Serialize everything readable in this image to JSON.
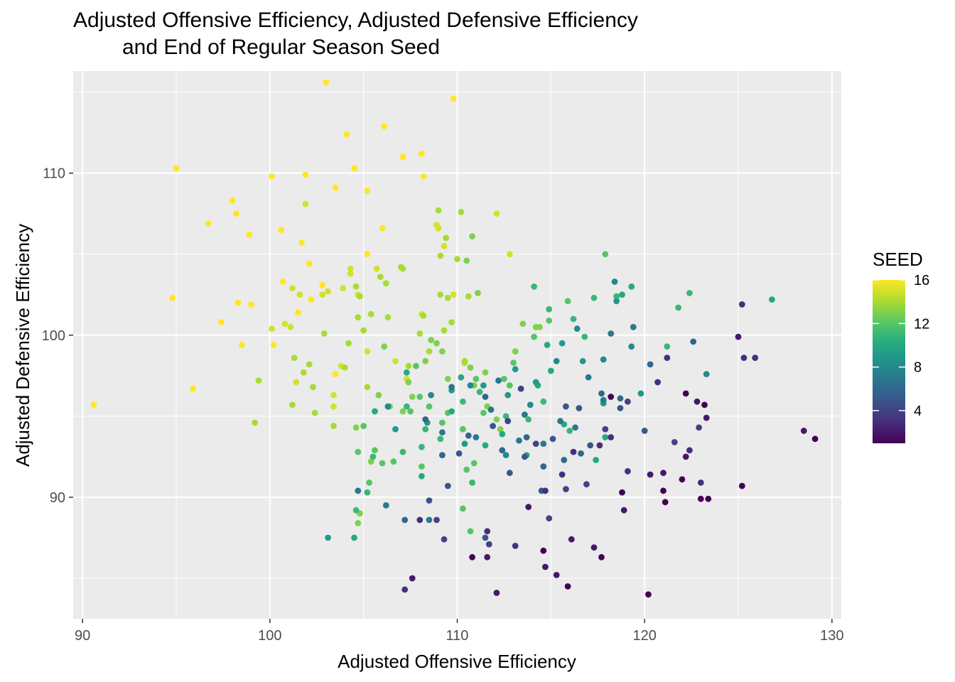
{
  "title_lines": [
    "Adjusted Offensive Efficiency, Adjusted Defensive Efficiency",
    "and End of Regular Season Seed"
  ],
  "chart_data": {
    "type": "scatter",
    "title": "Adjusted Offensive Efficiency, Adjusted Defensive Efficiency\nand End of Regular Season Seed",
    "xlabel": "Adjusted Offensive Efficiency",
    "ylabel": "Adjusted Defensive Efficiency",
    "xlim": [
      89.5,
      130.5
    ],
    "ylim": [
      82.5,
      116.3
    ],
    "x_ticks": [
      90,
      100,
      110,
      120,
      130
    ],
    "y_ticks": [
      90,
      100,
      110
    ],
    "grid": true,
    "panel_background": "#ebebeb",
    "color_legend": {
      "title": "SEED",
      "ticks": [
        4,
        8,
        12,
        16
      ],
      "range": [
        1,
        16
      ],
      "palette": "viridis",
      "placement": "right"
    },
    "points": [
      [
        90.6,
        95.7,
        16
      ],
      [
        94.8,
        102.3,
        16
      ],
      [
        95,
        110.3,
        16
      ],
      [
        95.9,
        96.7,
        16
      ],
      [
        96.7,
        106.9,
        16
      ],
      [
        97.4,
        100.8,
        16
      ],
      [
        98,
        108.3,
        16
      ],
      [
        98.2,
        107.5,
        16
      ],
      [
        98.3,
        102,
        16
      ],
      [
        98.5,
        99.4,
        16
      ],
      [
        98.9,
        106.2,
        16
      ],
      [
        99,
        101.9,
        16
      ],
      [
        100.1,
        109.8,
        16
      ],
      [
        100.2,
        99.4,
        16
      ],
      [
        100.6,
        106.5,
        16
      ],
      [
        100.7,
        103.3,
        16
      ],
      [
        101.5,
        101.4,
        16
      ],
      [
        101.7,
        105.7,
        16
      ],
      [
        101.9,
        109.9,
        16
      ],
      [
        102.1,
        104.4,
        16
      ],
      [
        102.2,
        102.2,
        16
      ],
      [
        102.8,
        103.1,
        16
      ],
      [
        103,
        115.6,
        16
      ],
      [
        103.5,
        109.1,
        16
      ],
      [
        103.5,
        97.6,
        16
      ],
      [
        104.1,
        112.4,
        16
      ],
      [
        104.5,
        110.3,
        16
      ],
      [
        105.2,
        108.9,
        16
      ],
      [
        105.2,
        105,
        16
      ],
      [
        106,
        106.6,
        16
      ],
      [
        106.1,
        112.9,
        16
      ],
      [
        107.1,
        111,
        16
      ],
      [
        108.1,
        111.2,
        16
      ],
      [
        108.2,
        109.8,
        16
      ],
      [
        109.8,
        114.6,
        16
      ],
      [
        100.1,
        100.4,
        15
      ],
      [
        101.2,
        102.9,
        15
      ],
      [
        101.9,
        108.1,
        15
      ],
      [
        101.6,
        102.5,
        15
      ],
      [
        102.8,
        102.5,
        15
      ],
      [
        103.1,
        102.7,
        15
      ],
      [
        103.4,
        96.3,
        15
      ],
      [
        103.8,
        98.1,
        15
      ],
      [
        103.9,
        102.9,
        15
      ],
      [
        104.3,
        104.1,
        15
      ],
      [
        104.3,
        103.8,
        15
      ],
      [
        104.7,
        102.5,
        15
      ],
      [
        100.8,
        100.7,
        15
      ],
      [
        101.1,
        100.5,
        15
      ],
      [
        101.4,
        97.1,
        15
      ],
      [
        103.4,
        95.6,
        15
      ],
      [
        105.2,
        99,
        15
      ],
      [
        105.7,
        104.1,
        15
      ],
      [
        106.7,
        98.4,
        15
      ],
      [
        107.3,
        97.3,
        15
      ],
      [
        108.1,
        101.3,
        15
      ],
      [
        108.9,
        106.8,
        15
      ],
      [
        109,
        106.6,
        15
      ],
      [
        109.3,
        105.5,
        15
      ],
      [
        109.8,
        102.5,
        15
      ],
      [
        112.1,
        107.5,
        15
      ],
      [
        112.8,
        105,
        15
      ],
      [
        99.2,
        94.6,
        14
      ],
      [
        99.4,
        97.2,
        14
      ],
      [
        101.2,
        95.7,
        14
      ],
      [
        101.3,
        98.6,
        14
      ],
      [
        101.8,
        97.7,
        14
      ],
      [
        102.1,
        98.2,
        14
      ],
      [
        102.3,
        96.8,
        14
      ],
      [
        102.4,
        95.2,
        14
      ],
      [
        102.9,
        100.1,
        14
      ],
      [
        103.4,
        94.4,
        14
      ],
      [
        104,
        98,
        14
      ],
      [
        104.2,
        99.5,
        14
      ],
      [
        104.6,
        103,
        14
      ],
      [
        104.7,
        101.1,
        14
      ],
      [
        104.8,
        102.4,
        14
      ],
      [
        105,
        100.3,
        14
      ],
      [
        105.2,
        96.8,
        14
      ],
      [
        105.4,
        101.3,
        14
      ],
      [
        105.9,
        103.6,
        14
      ],
      [
        106.2,
        103.2,
        14
      ],
      [
        106.3,
        101.1,
        14
      ],
      [
        107,
        104.2,
        14
      ],
      [
        107.1,
        104.1,
        14
      ],
      [
        107.4,
        98.1,
        14
      ],
      [
        108,
        100.1,
        14
      ],
      [
        108.2,
        101.2,
        14
      ],
      [
        108.5,
        99,
        14
      ],
      [
        109,
        107.7,
        14
      ],
      [
        109.1,
        104.9,
        14
      ],
      [
        109.1,
        102.5,
        14
      ],
      [
        109.3,
        100.3,
        14
      ],
      [
        109.4,
        106,
        14
      ],
      [
        109.5,
        102.3,
        14
      ],
      [
        109.7,
        100.8,
        14
      ],
      [
        110,
        104.7,
        14
      ],
      [
        110.2,
        107.6,
        14
      ],
      [
        110.4,
        98.4,
        14
      ],
      [
        110.4,
        98.3,
        14
      ],
      [
        110.6,
        102.4,
        14
      ],
      [
        104.6,
        94.3,
        13
      ],
      [
        104.7,
        88.4,
        13
      ],
      [
        104.8,
        89,
        13
      ],
      [
        105.4,
        92.2,
        13
      ],
      [
        105.8,
        96.3,
        13
      ],
      [
        106.1,
        99.3,
        13
      ],
      [
        106.4,
        95.6,
        13
      ],
      [
        107.1,
        95.3,
        13
      ],
      [
        107.4,
        97.1,
        13
      ],
      [
        107.6,
        96.2,
        13
      ],
      [
        108.3,
        98.4,
        13
      ],
      [
        108.6,
        99.7,
        13
      ],
      [
        108.9,
        99.5,
        13
      ],
      [
        109.2,
        99,
        13
      ],
      [
        109.5,
        97.3,
        13
      ],
      [
        110.5,
        104.6,
        13
      ],
      [
        110.7,
        98,
        13
      ],
      [
        110.8,
        106.1,
        13
      ],
      [
        110.9,
        96.9,
        13
      ],
      [
        111.1,
        102.6,
        13
      ],
      [
        111.5,
        97.7,
        13
      ],
      [
        111.6,
        95.6,
        13
      ],
      [
        112.1,
        94.8,
        13
      ],
      [
        112.3,
        94.2,
        13
      ],
      [
        113.1,
        99,
        13
      ],
      [
        113.5,
        100.7,
        13
      ],
      [
        114.2,
        100.5,
        13
      ],
      [
        114.4,
        100.5,
        13
      ],
      [
        104.7,
        92.8,
        12
      ],
      [
        105,
        94.4,
        12
      ],
      [
        105.3,
        90.9,
        12
      ],
      [
        105.6,
        92.9,
        12
      ],
      [
        106,
        92.1,
        12
      ],
      [
        106.6,
        92.2,
        12
      ],
      [
        107.5,
        95.3,
        12
      ],
      [
        107.8,
        98.1,
        12
      ],
      [
        108,
        96.2,
        12
      ],
      [
        108.1,
        91.9,
        12
      ],
      [
        108.5,
        95.6,
        12
      ],
      [
        109.2,
        94.6,
        12
      ],
      [
        109.5,
        95.2,
        12
      ],
      [
        110.3,
        94.2,
        12
      ],
      [
        110.3,
        89.3,
        12
      ],
      [
        110.5,
        91.7,
        12
      ],
      [
        110.7,
        87.9,
        12
      ],
      [
        110.9,
        92.1,
        12
      ],
      [
        111,
        97.3,
        12
      ],
      [
        111.4,
        95.2,
        12
      ],
      [
        112.5,
        97.3,
        12
      ],
      [
        112.8,
        96.9,
        12
      ],
      [
        113,
        98.3,
        12
      ],
      [
        114.1,
        99.9,
        12
      ],
      [
        114.9,
        100.9,
        12
      ],
      [
        115.9,
        102.1,
        12
      ],
      [
        117.9,
        105,
        12
      ],
      [
        104.6,
        89.2,
        11
      ],
      [
        105.2,
        90.3,
        11
      ],
      [
        105.5,
        92.5,
        11
      ],
      [
        107.1,
        92.8,
        11
      ],
      [
        107.3,
        95.6,
        11
      ],
      [
        108.1,
        93.1,
        11
      ],
      [
        108.3,
        94.2,
        11
      ],
      [
        109.1,
        93.6,
        11
      ],
      [
        110.3,
        95.9,
        11
      ],
      [
        110.8,
        90.9,
        11
      ],
      [
        111.2,
        96.5,
        11
      ],
      [
        112.6,
        95,
        11
      ],
      [
        113.8,
        94.8,
        11
      ],
      [
        114.1,
        103,
        11
      ],
      [
        114.6,
        95.9,
        11
      ],
      [
        114.9,
        101.6,
        11
      ],
      [
        116,
        94.1,
        11
      ],
      [
        116.2,
        101,
        11
      ],
      [
        116.8,
        99.9,
        11
      ],
      [
        117.3,
        102.3,
        11
      ],
      [
        118.5,
        102.4,
        11
      ],
      [
        121.2,
        99.3,
        11
      ],
      [
        121.8,
        101.7,
        11
      ],
      [
        122.4,
        102.6,
        11
      ],
      [
        104.5,
        87.5,
        10
      ],
      [
        105.6,
        95.3,
        10
      ],
      [
        107.3,
        97.7,
        10
      ],
      [
        108.1,
        91.3,
        10
      ],
      [
        109.7,
        95.3,
        10
      ],
      [
        110.2,
        97.4,
        10
      ],
      [
        111.5,
        93.2,
        10
      ],
      [
        112.4,
        93.9,
        10
      ],
      [
        113.7,
        92.6,
        10
      ],
      [
        114.3,
        96.9,
        10
      ],
      [
        114.8,
        99.4,
        10
      ],
      [
        115,
        97.8,
        10
      ],
      [
        115.7,
        94.5,
        10
      ],
      [
        117.4,
        92.3,
        10
      ],
      [
        117.9,
        93.7,
        10
      ],
      [
        118.8,
        102.5,
        10
      ],
      [
        119.3,
        103,
        10
      ],
      [
        126.8,
        102.2,
        10
      ],
      [
        103.1,
        87.5,
        9
      ],
      [
        106.7,
        94.2,
        9
      ],
      [
        108.4,
        94.6,
        9
      ],
      [
        109.7,
        96.6,
        9
      ],
      [
        110.4,
        93.3,
        9
      ],
      [
        111.4,
        96.9,
        9
      ],
      [
        112.7,
        96.3,
        9
      ],
      [
        113.1,
        97.9,
        9
      ],
      [
        114.2,
        97.1,
        9
      ],
      [
        115.6,
        99.5,
        9
      ],
      [
        116.7,
        98.4,
        9
      ],
      [
        117.8,
        95.8,
        9
      ],
      [
        118.5,
        102.1,
        9
      ],
      [
        119.8,
        96.4,
        9
      ],
      [
        106.3,
        95.6,
        8
      ],
      [
        108.6,
        96.3,
        8
      ],
      [
        110.7,
        96.9,
        8
      ],
      [
        112.6,
        92.6,
        8
      ],
      [
        113.9,
        95.7,
        8
      ],
      [
        115.3,
        98.4,
        8
      ],
      [
        116.4,
        100.4,
        8
      ],
      [
        117.8,
        98.5,
        8
      ],
      [
        118.4,
        103.3,
        8
      ],
      [
        119.3,
        99.3,
        8
      ],
      [
        123.3,
        97.6,
        8
      ],
      [
        104.7,
        90.4,
        7
      ],
      [
        106.2,
        89.5,
        7
      ],
      [
        108.5,
        88.6,
        7
      ],
      [
        109.2,
        94,
        7
      ],
      [
        109.7,
        96.8,
        7
      ],
      [
        111,
        93.7,
        7
      ],
      [
        111.8,
        95.4,
        7
      ],
      [
        112.2,
        97.2,
        7
      ],
      [
        113.3,
        93.5,
        7
      ],
      [
        113.6,
        95.1,
        7
      ],
      [
        114.6,
        93.3,
        7
      ],
      [
        115.5,
        94.7,
        7
      ],
      [
        116.3,
        94.3,
        7
      ],
      [
        117,
        97.4,
        7
      ],
      [
        117.8,
        96,
        7
      ],
      [
        118.2,
        100.1,
        7
      ],
      [
        119.4,
        100.5,
        7
      ],
      [
        107.2,
        88.6,
        6
      ],
      [
        108.3,
        94.8,
        6
      ],
      [
        109.2,
        92.6,
        6
      ],
      [
        110.6,
        93.8,
        6
      ],
      [
        111.5,
        96.2,
        6
      ],
      [
        112.4,
        92.9,
        6
      ],
      [
        113.7,
        93.7,
        6
      ],
      [
        114.6,
        91.9,
        6
      ],
      [
        115.7,
        92.3,
        6
      ],
      [
        116.6,
        92.7,
        6
      ],
      [
        117.7,
        96.4,
        6
      ],
      [
        118.7,
        96.1,
        6
      ],
      [
        120.3,
        98.2,
        6
      ],
      [
        122.6,
        99.6,
        6
      ],
      [
        108.5,
        89.8,
        5
      ],
      [
        109.5,
        90.7,
        5
      ],
      [
        110.1,
        92.7,
        5
      ],
      [
        111.5,
        87.5,
        5
      ],
      [
        111.9,
        94.4,
        5
      ],
      [
        112.8,
        91.5,
        5
      ],
      [
        113.6,
        92.5,
        5
      ],
      [
        114.5,
        90.4,
        5
      ],
      [
        115.1,
        93.6,
        5
      ],
      [
        115.8,
        95.6,
        5
      ],
      [
        116.5,
        95.5,
        5
      ],
      [
        117.1,
        93.2,
        5
      ],
      [
        118.7,
        95.5,
        5
      ],
      [
        120,
        94.1,
        5
      ],
      [
        108.9,
        88.6,
        4
      ],
      [
        109.3,
        87.4,
        4
      ],
      [
        111.7,
        87.1,
        4
      ],
      [
        112.7,
        94.7,
        4
      ],
      [
        113.4,
        96.7,
        4
      ],
      [
        114.2,
        93.3,
        4
      ],
      [
        114.9,
        88.7,
        4
      ],
      [
        115.8,
        90.5,
        4
      ],
      [
        116.9,
        90.8,
        4
      ],
      [
        117.9,
        94.2,
        4
      ],
      [
        119.1,
        95.9,
        4
      ],
      [
        121.6,
        93.4,
        4
      ],
      [
        122.9,
        94.3,
        4
      ],
      [
        107.2,
        84.3,
        3
      ],
      [
        108,
        88.6,
        3
      ],
      [
        111.6,
        87.9,
        3
      ],
      [
        113.1,
        87,
        3
      ],
      [
        114.7,
        90.4,
        3
      ],
      [
        115.6,
        91.4,
        3
      ],
      [
        116.2,
        92.8,
        3
      ],
      [
        117.6,
        93.2,
        3
      ],
      [
        118.2,
        93.7,
        3
      ],
      [
        119.1,
        91.6,
        3
      ],
      [
        120.7,
        97.1,
        3
      ],
      [
        121.2,
        98.6,
        3
      ],
      [
        122.4,
        92.9,
        3
      ],
      [
        123,
        90.9,
        3
      ],
      [
        125.2,
        101.9,
        3
      ],
      [
        125.3,
        98.6,
        3
      ],
      [
        125.9,
        98.6,
        3
      ],
      [
        107.6,
        85,
        2
      ],
      [
        111.6,
        86.3,
        2
      ],
      [
        112.1,
        84.1,
        2
      ],
      [
        113.8,
        89.4,
        2
      ],
      [
        114.7,
        85.7,
        2
      ],
      [
        115.3,
        85.2,
        2
      ],
      [
        116.1,
        87.4,
        2
      ],
      [
        117.3,
        86.9,
        2
      ],
      [
        118.9,
        89.2,
        2
      ],
      [
        120.3,
        91.4,
        2
      ],
      [
        121,
        91.5,
        2
      ],
      [
        122.2,
        92.5,
        2
      ],
      [
        122.8,
        95.9,
        2
      ],
      [
        123.3,
        94.9,
        2
      ],
      [
        125,
        99.9,
        2
      ],
      [
        128.5,
        94.1,
        2
      ],
      [
        110.8,
        86.3,
        1
      ],
      [
        114.6,
        86.7,
        1
      ],
      [
        115.9,
        84.5,
        1
      ],
      [
        117.7,
        86.3,
        1
      ],
      [
        118.2,
        96.2,
        1
      ],
      [
        118.8,
        90.3,
        1
      ],
      [
        120.2,
        84,
        1
      ],
      [
        121,
        90.4,
        1
      ],
      [
        121.1,
        89.7,
        1
      ],
      [
        122,
        91.1,
        1
      ],
      [
        122.2,
        96.4,
        1
      ],
      [
        123,
        89.9,
        1
      ],
      [
        123.2,
        95.7,
        1
      ],
      [
        123.4,
        89.9,
        1
      ],
      [
        125.2,
        90.7,
        1
      ],
      [
        129.1,
        93.6,
        1
      ]
    ]
  }
}
